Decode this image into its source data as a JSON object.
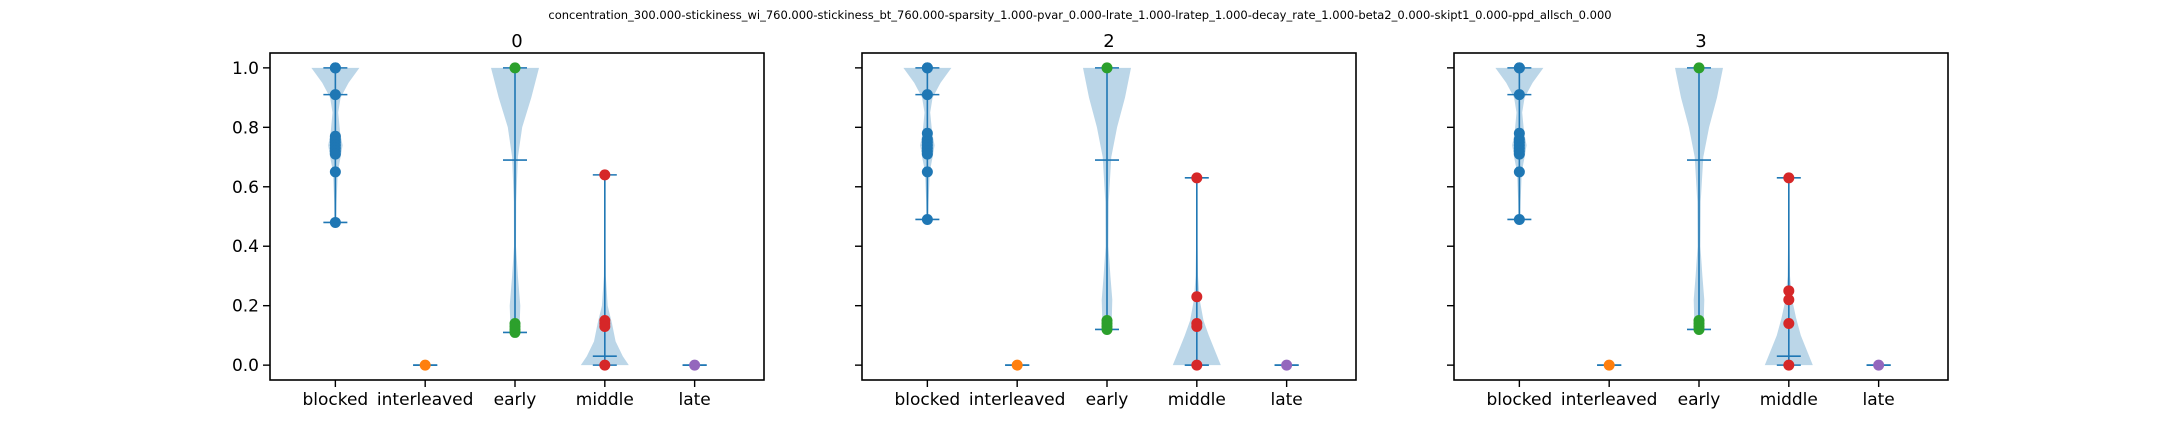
{
  "figure": {
    "suptitle": "concentration_300.000-stickiness_wi_760.000-stickiness_bt_760.000-sparsity_1.000-pvar_0.000-lrate_1.000-lratep_1.000-decay_rate_1.000-beta2_0.000-skipt1_0.000-ppd_allsch_0.000"
  },
  "colors": {
    "violin_fill": "#1f77b4",
    "whisker": "#1f77b4",
    "blocked": "#1f77b4",
    "interleaved": "#ff7f0e",
    "early": "#2ca02c",
    "middle": "#d62728",
    "late": "#9467bd"
  },
  "chart_data": [
    {
      "type": "violin",
      "title": "0",
      "categories": [
        "blocked",
        "interleaved",
        "early",
        "middle",
        "late"
      ],
      "ylim": [
        -0.05,
        1.05
      ],
      "yticks": [
        0.0,
        0.2,
        0.4,
        0.6,
        0.8,
        1.0
      ],
      "ytick_labels": [
        "0.0",
        "0.2",
        "0.4",
        "0.6",
        "0.8",
        "1.0"
      ],
      "grid": false,
      "series": [
        {
          "category": "blocked",
          "min": 0.48,
          "max": 1.0,
          "mean": 0.91,
          "points": [
            1.0,
            1.0,
            0.91,
            0.77,
            0.76,
            0.75,
            0.74,
            0.73,
            0.72,
            0.71,
            0.65,
            0.48
          ],
          "density": [
            [
              0.48,
              0.03
            ],
            [
              0.55,
              0.05
            ],
            [
              0.65,
              0.1
            ],
            [
              0.7,
              0.22
            ],
            [
              0.74,
              0.3
            ],
            [
              0.78,
              0.2
            ],
            [
              0.85,
              0.12
            ],
            [
              0.9,
              0.22
            ],
            [
              0.95,
              0.55
            ],
            [
              1.0,
              1.0
            ]
          ]
        },
        {
          "category": "interleaved",
          "min": 0.0,
          "max": 0.0,
          "mean": 0.0,
          "points": [
            0.0
          ],
          "density": []
        },
        {
          "category": "early",
          "min": 0.11,
          "max": 1.0,
          "mean": 0.69,
          "points": [
            1.0,
            0.14,
            0.13,
            0.12,
            0.11
          ],
          "density": [
            [
              0.11,
              0.08
            ],
            [
              0.15,
              0.2
            ],
            [
              0.2,
              0.22
            ],
            [
              0.3,
              0.12
            ],
            [
              0.4,
              0.04
            ],
            [
              0.55,
              0.05
            ],
            [
              0.7,
              0.12
            ],
            [
              0.8,
              0.3
            ],
            [
              0.9,
              0.68
            ],
            [
              1.0,
              1.0
            ]
          ]
        },
        {
          "category": "middle",
          "min": 0.0,
          "max": 0.64,
          "mean": 0.03,
          "points": [
            0.64,
            0.15,
            0.14,
            0.13,
            0.0
          ],
          "density": [
            [
              0.0,
              1.0
            ],
            [
              0.03,
              0.75
            ],
            [
              0.08,
              0.45
            ],
            [
              0.14,
              0.3
            ],
            [
              0.2,
              0.12
            ],
            [
              0.3,
              0.04
            ],
            [
              0.45,
              0.02
            ],
            [
              0.64,
              0.02
            ]
          ]
        },
        {
          "category": "late",
          "min": 0.0,
          "max": 0.0,
          "mean": 0.0,
          "points": [
            0.0
          ],
          "density": []
        }
      ]
    },
    {
      "type": "violin",
      "title": "2",
      "categories": [
        "blocked",
        "interleaved",
        "early",
        "middle",
        "late"
      ],
      "ylim": [
        -0.05,
        1.05
      ],
      "yticks": [
        0.0,
        0.2,
        0.4,
        0.6,
        0.8,
        1.0
      ],
      "ytick_labels": [
        "",
        "",
        "",
        "",
        "",
        ""
      ],
      "grid": false,
      "series": [
        {
          "category": "blocked",
          "min": 0.49,
          "max": 1.0,
          "mean": 0.91,
          "points": [
            1.0,
            1.0,
            0.91,
            0.78,
            0.76,
            0.75,
            0.74,
            0.73,
            0.72,
            0.71,
            0.65,
            0.49
          ],
          "density": [
            [
              0.49,
              0.03
            ],
            [
              0.55,
              0.05
            ],
            [
              0.65,
              0.1
            ],
            [
              0.7,
              0.22
            ],
            [
              0.74,
              0.3
            ],
            [
              0.78,
              0.2
            ],
            [
              0.85,
              0.12
            ],
            [
              0.9,
              0.22
            ],
            [
              0.95,
              0.55
            ],
            [
              1.0,
              1.0
            ]
          ]
        },
        {
          "category": "interleaved",
          "min": 0.0,
          "max": 0.0,
          "mean": 0.0,
          "points": [
            0.0
          ],
          "density": []
        },
        {
          "category": "early",
          "min": 0.12,
          "max": 1.0,
          "mean": 0.69,
          "points": [
            1.0,
            0.15,
            0.14,
            0.13,
            0.12
          ],
          "density": [
            [
              0.12,
              0.08
            ],
            [
              0.16,
              0.2
            ],
            [
              0.22,
              0.22
            ],
            [
              0.3,
              0.14
            ],
            [
              0.4,
              0.06
            ],
            [
              0.55,
              0.07
            ],
            [
              0.7,
              0.18
            ],
            [
              0.8,
              0.42
            ],
            [
              0.9,
              0.75
            ],
            [
              1.0,
              1.0
            ]
          ]
        },
        {
          "category": "middle",
          "min": 0.0,
          "max": 0.63,
          "mean": 0.0,
          "points": [
            0.63,
            0.23,
            0.14,
            0.13,
            0.0
          ],
          "density": [
            [
              0.0,
              1.0
            ],
            [
              0.04,
              0.8
            ],
            [
              0.1,
              0.5
            ],
            [
              0.15,
              0.28
            ],
            [
              0.22,
              0.12
            ],
            [
              0.3,
              0.05
            ],
            [
              0.45,
              0.02
            ],
            [
              0.63,
              0.02
            ]
          ]
        },
        {
          "category": "late",
          "min": 0.0,
          "max": 0.0,
          "mean": 0.0,
          "points": [
            0.0
          ],
          "density": []
        }
      ]
    },
    {
      "type": "violin",
      "title": "3",
      "categories": [
        "blocked",
        "interleaved",
        "early",
        "middle",
        "late"
      ],
      "ylim": [
        -0.05,
        1.05
      ],
      "yticks": [
        0.0,
        0.2,
        0.4,
        0.6,
        0.8,
        1.0
      ],
      "ytick_labels": [
        "",
        "",
        "",
        "",
        "",
        ""
      ],
      "grid": false,
      "series": [
        {
          "category": "blocked",
          "min": 0.49,
          "max": 1.0,
          "mean": 0.91,
          "points": [
            1.0,
            1.0,
            0.91,
            0.78,
            0.76,
            0.75,
            0.74,
            0.73,
            0.72,
            0.71,
            0.65,
            0.49
          ],
          "density": [
            [
              0.49,
              0.03
            ],
            [
              0.55,
              0.05
            ],
            [
              0.65,
              0.1
            ],
            [
              0.7,
              0.22
            ],
            [
              0.74,
              0.3
            ],
            [
              0.78,
              0.2
            ],
            [
              0.85,
              0.12
            ],
            [
              0.9,
              0.22
            ],
            [
              0.95,
              0.55
            ],
            [
              1.0,
              1.0
            ]
          ]
        },
        {
          "category": "interleaved",
          "min": 0.0,
          "max": 0.0,
          "mean": 0.0,
          "points": [
            0.0
          ],
          "density": []
        },
        {
          "category": "early",
          "min": 0.12,
          "max": 1.0,
          "mean": 0.69,
          "points": [
            1.0,
            0.15,
            0.14,
            0.13,
            0.12
          ],
          "density": [
            [
              0.12,
              0.08
            ],
            [
              0.16,
              0.2
            ],
            [
              0.22,
              0.22
            ],
            [
              0.3,
              0.14
            ],
            [
              0.4,
              0.06
            ],
            [
              0.55,
              0.07
            ],
            [
              0.7,
              0.18
            ],
            [
              0.8,
              0.42
            ],
            [
              0.9,
              0.75
            ],
            [
              1.0,
              1.0
            ]
          ]
        },
        {
          "category": "middle",
          "min": 0.0,
          "max": 0.63,
          "mean": 0.03,
          "points": [
            0.63,
            0.25,
            0.22,
            0.14,
            0.0
          ],
          "density": [
            [
              0.0,
              1.0
            ],
            [
              0.04,
              0.8
            ],
            [
              0.1,
              0.5
            ],
            [
              0.16,
              0.3
            ],
            [
              0.22,
              0.14
            ],
            [
              0.3,
              0.05
            ],
            [
              0.45,
              0.02
            ],
            [
              0.63,
              0.02
            ]
          ]
        },
        {
          "category": "late",
          "min": 0.0,
          "max": 0.0,
          "mean": 0.0,
          "points": [
            0.0
          ],
          "density": []
        }
      ]
    }
  ]
}
